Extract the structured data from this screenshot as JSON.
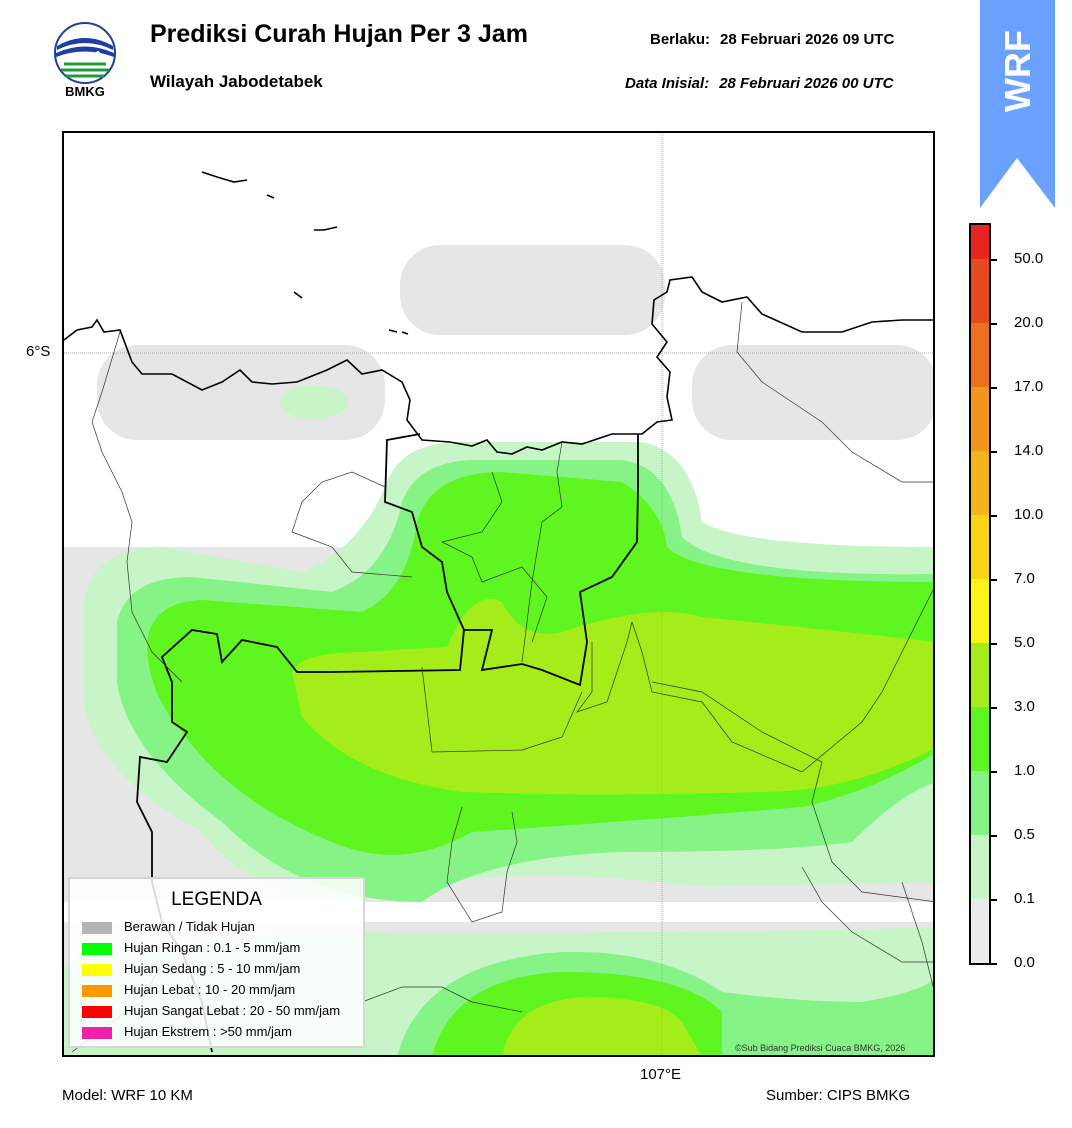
{
  "header": {
    "title": "Prediksi Curah Hujan Per 3 Jam",
    "subtitle": "Wilayah Jabodetabek",
    "valid_label": "Berlaku:",
    "valid_value": "28 Februari 2026 09 UTC",
    "init_label": "Data Inisial:",
    "init_value": "28 Februari 2026 00 UTC"
  },
  "logo": {
    "text": "BMKG"
  },
  "badge": {
    "text": "WRF",
    "color": "#6aa0ff"
  },
  "map": {
    "lat_label": "6°S",
    "lon_label": "107°E",
    "copyright": "©Sub Bidang Prediksi Cuaca BMKG, 2026"
  },
  "footer": {
    "model": "Model: WRF 10 KM",
    "source": "Sumber: CIPS BMKG"
  },
  "legend": {
    "title": "LEGENDA",
    "items": [
      {
        "label": "Berawan / Tidak Hujan",
        "color": "#b4b4b4"
      },
      {
        "label": "Hujan Ringan : 0.1 - 5 mm/jam",
        "color": "#00ff00"
      },
      {
        "label": "Hujan Sedang : 5 - 10 mm/jam",
        "color": "#ffff00"
      },
      {
        "label": "Hujan Lebat : 10 - 20 mm/jam",
        "color": "#ff9900"
      },
      {
        "label": "Hujan Sangat Lebat : 20 - 50 mm/jam",
        "color": "#ff0000"
      },
      {
        "label": "Hujan Ekstrem : >50 mm/jam",
        "color": "#ee22aa"
      }
    ]
  },
  "colorbar": {
    "ticks": [
      "0.0",
      "0.1",
      "0.5",
      "1.0",
      "3.0",
      "5.0",
      "7.0",
      "10.0",
      "14.0",
      "17.0",
      "20.0",
      "50.0"
    ],
    "colors": [
      "#ebebeb",
      "#c7f5c7",
      "#86f386",
      "#5ef520",
      "#a4ec1a",
      "#fcf416",
      "#f8d414",
      "#f3b41c",
      "#f0961e",
      "#ed7020",
      "#e54a20",
      "#e8241e",
      "#e028b4"
    ]
  }
}
